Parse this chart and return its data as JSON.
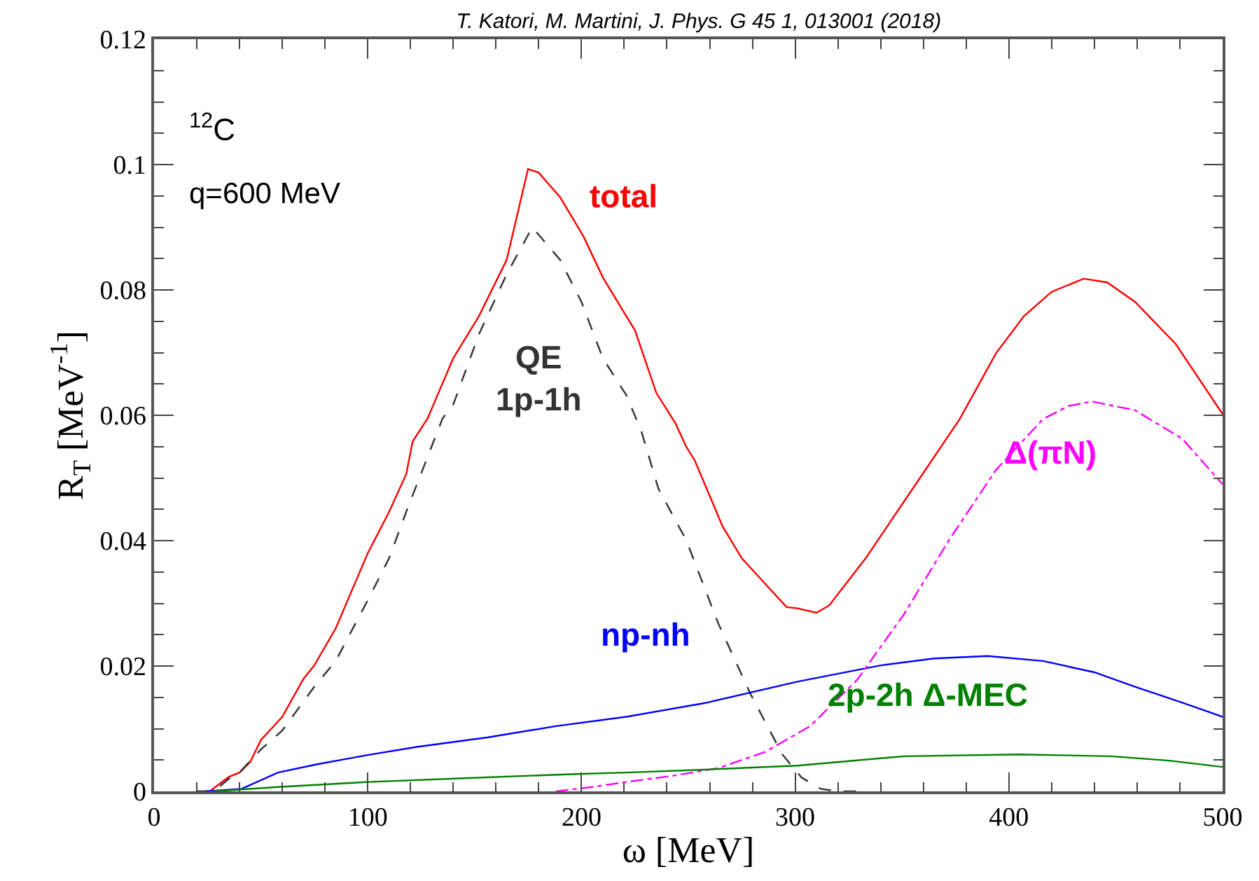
{
  "chart_data": {
    "type": "line",
    "title": "T. Katori, M. Martini, J. Phys. G 45 1, 013001 (2018)",
    "xlabel": "ω [MeV]",
    "ylabel": "R$_{T}$ [MeV$^{-1}$]",
    "annotations": [
      "$^{12}$C",
      "q=600 MeV"
    ],
    "xlim": [
      0,
      500
    ],
    "ylim": [
      0,
      0.12
    ],
    "xticks": [
      0,
      {
        "value": 20,
        "label": null
      },
      {
        "value": 40,
        "label": null
      },
      {
        "value": 60,
        "label": null
      },
      {
        "value": 80,
        "label": null
      },
      100,
      {
        "value": 120,
        "label": null
      },
      {
        "value": 140,
        "label": null
      },
      {
        "value": 160,
        "label": null
      },
      {
        "value": 180,
        "label": null
      },
      200,
      {
        "value": 220,
        "label": null
      },
      {
        "value": 240,
        "label": null
      },
      {
        "value": 260,
        "label": null
      },
      {
        "value": 280,
        "label": null
      },
      300,
      {
        "value": 320,
        "label": null
      },
      {
        "value": 340,
        "label": null
      },
      {
        "value": 360,
        "label": null
      },
      {
        "value": 380,
        "label": null
      },
      400,
      {
        "value": 420,
        "label": null
      },
      {
        "value": 440,
        "label": null
      },
      {
        "value": 460,
        "label": null
      },
      {
        "value": 480,
        "label": null
      },
      500
    ],
    "yticks": [
      0,
      {
        "value": 0.005,
        "label": null
      },
      {
        "value": 0.01,
        "label": null
      },
      {
        "value": 0.015,
        "label": null
      },
      0.02,
      {
        "value": 0.025,
        "label": null
      },
      {
        "value": 0.03,
        "label": null
      },
      {
        "value": 0.035,
        "label": null
      },
      0.04,
      {
        "value": 0.045,
        "label": null
      },
      {
        "value": 0.05,
        "label": null
      },
      {
        "value": 0.055,
        "label": null
      },
      0.06,
      {
        "value": 0.065,
        "label": null
      },
      {
        "value": 0.07,
        "label": null
      },
      {
        "value": 0.075,
        "label": null
      },
      0.08,
      {
        "value": 0.085,
        "label": null
      },
      {
        "value": 0.09,
        "label": null
      },
      {
        "value": 0.095,
        "label": null
      },
      0.1,
      {
        "value": 0.105,
        "label": null
      },
      {
        "value": 0.11,
        "label": null
      },
      {
        "value": 0.115,
        "label": null
      },
      0.12
    ],
    "legend": false,
    "marker": "none",
    "series": [
      {
        "name": "total",
        "color": "#ff0000",
        "line_style": "solid",
        "x": [
          20,
          26,
          35,
          40,
          45,
          50,
          60,
          70,
          75,
          85,
          100,
          110,
          118,
          121,
          128,
          140,
          152,
          165,
          175,
          180,
          190,
          201,
          210,
          221,
          225,
          235,
          244,
          249,
          253,
          266,
          275,
          286,
          296,
          301,
          310,
          316,
          333,
          355,
          377,
          394,
          407,
          420,
          435,
          446,
          459,
          478,
          500
        ],
        "values": [
          0,
          0,
          0.0023,
          0.003,
          0.0047,
          0.0082,
          0.0119,
          0.018,
          0.0201,
          0.026,
          0.038,
          0.0446,
          0.0506,
          0.0558,
          0.0595,
          0.0691,
          0.0758,
          0.0848,
          0.0993,
          0.0987,
          0.0948,
          0.0885,
          0.082,
          0.0758,
          0.0736,
          0.0636,
          0.0587,
          0.055,
          0.0528,
          0.0423,
          0.0372,
          0.0331,
          0.0294,
          0.0292,
          0.0285,
          0.0297,
          0.0372,
          0.0483,
          0.0594,
          0.0699,
          0.0758,
          0.0797,
          0.0818,
          0.0812,
          0.0781,
          0.0714,
          0.0602
        ]
      },
      {
        "name": "QE\n1p-1h",
        "color": "#333333",
        "line_style": "dashed",
        "x": [
          20,
          28,
          35,
          40,
          50,
          60,
          75,
          85,
          100,
          110,
          118,
          135,
          140,
          152,
          165,
          177,
          190,
          200,
          210,
          221,
          228,
          236,
          249,
          264,
          279,
          294,
          303,
          312,
          320,
          333
        ],
        "values": [
          0,
          0,
          0.002,
          0.003,
          0.0067,
          0.0097,
          0.0167,
          0.0208,
          0.0305,
          0.0372,
          0.0446,
          0.0595,
          0.0617,
          0.0729,
          0.0825,
          0.09,
          0.0848,
          0.0781,
          0.0691,
          0.0632,
          0.0575,
          0.0483,
          0.0401,
          0.0268,
          0.0156,
          0.0059,
          0.0022,
          0.0004,
          0,
          0
        ]
      },
      {
        "name": "np-nh",
        "color": "#0000ff",
        "line_style": "solid",
        "x": [
          24,
          41,
          58,
          76,
          100,
          123,
          156,
          188,
          221,
          258,
          301,
          340,
          365,
          390,
          416,
          440,
          459,
          480,
          500
        ],
        "values": [
          0,
          0.0004,
          0.003,
          0.0043,
          0.0058,
          0.0071,
          0.0086,
          0.0104,
          0.0119,
          0.0141,
          0.0175,
          0.0201,
          0.0212,
          0.0216,
          0.0208,
          0.019,
          0.0167,
          0.0143,
          0.0119
        ]
      },
      {
        "name": "Δ(πN)",
        "color": "#ff00ff",
        "line_style": "dashdot",
        "x": [
          188,
          205,
          221,
          243,
          264,
          286,
          307,
          329,
          351,
          372,
          394,
          416,
          428,
          439,
          459,
          481,
          500
        ],
        "values": [
          0,
          0.0007,
          0.0015,
          0.0025,
          0.0037,
          0.0063,
          0.0104,
          0.0178,
          0.0283,
          0.0401,
          0.0513,
          0.0594,
          0.0615,
          0.0622,
          0.0608,
          0.0563,
          0.049
        ]
      },
      {
        "name": "2p-2h Δ-MEC",
        "color": "#008000",
        "line_style": "solid",
        "x": [
          28,
          58,
          100,
          145,
          200,
          221,
          260,
          301,
          351,
          405,
          448,
          475,
          500
        ],
        "values": [
          0,
          0.0007,
          0.0015,
          0.0021,
          0.0028,
          0.003,
          0.0035,
          0.0041,
          0.0056,
          0.0059,
          0.0056,
          0.0049,
          0.0039
        ]
      }
    ]
  }
}
